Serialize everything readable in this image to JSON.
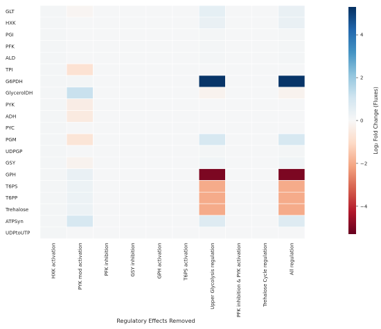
{
  "chart_data": {
    "type": "heatmap",
    "title": "",
    "xlabel": "Regulatory Effects Removed",
    "ylabel": "",
    "colorbar_label": "Log₂ Fold Change (Fluxes)",
    "colorbar_ticks": [
      4,
      2,
      0,
      -2,
      -4
    ],
    "colorbar_tick_labels": [
      "4",
      "2",
      "0",
      "−2",
      "−4"
    ],
    "vmin": -5.3,
    "vmax": 5.3,
    "colormap": "RdBu",
    "rows": [
      "GLT",
      "HXK",
      "PGI",
      "PFK",
      "ALD",
      "TPI",
      "G6PDH",
      "GlycerolDH",
      "PYK",
      "ADH",
      "PYC",
      "PGM",
      "UDPGP",
      "GSY",
      "GPH",
      "T6PS",
      "T6PP",
      "Trehalose",
      "ATPSyn",
      "UDPtoUTP"
    ],
    "columns": [
      "HXK activation",
      "PYK mod activation",
      "PFK inhibition",
      "GSY inhibition",
      "GPH activation",
      "T6PS activation",
      "Upper Glycolysis regulation",
      "PFK inhibition & PYK activation",
      "Trehalose Cycle regulation",
      "All regulation"
    ],
    "values": [
      [
        0.1,
        -0.1,
        0.05,
        0.05,
        0.05,
        0.05,
        0.5,
        0.05,
        0.05,
        0.4
      ],
      [
        0.1,
        0.05,
        0.05,
        0.05,
        0.05,
        0.05,
        0.4,
        0.05,
        0.05,
        0.4
      ],
      [
        0.1,
        0.05,
        0.05,
        0.05,
        0.05,
        0.05,
        0.1,
        0.05,
        0.05,
        0.1
      ],
      [
        0.1,
        0.05,
        0.05,
        0.05,
        0.05,
        0.05,
        0.1,
        0.05,
        0.05,
        0.1
      ],
      [
        0.1,
        0.05,
        0.05,
        0.05,
        0.05,
        0.05,
        0.1,
        0.05,
        0.05,
        0.1
      ],
      [
        0.1,
        -0.8,
        0.05,
        0.05,
        0.05,
        0.05,
        0.05,
        0.05,
        0.05,
        0.05
      ],
      [
        0.1,
        0.1,
        0.05,
        0.05,
        0.05,
        0.05,
        5.2,
        0.05,
        0.05,
        5.2
      ],
      [
        0.1,
        1.2,
        0.05,
        0.05,
        0.05,
        0.05,
        -0.2,
        0.05,
        0.05,
        -0.2
      ],
      [
        0.1,
        -0.4,
        0.05,
        0.05,
        0.05,
        0.05,
        0.05,
        0.05,
        0.05,
        0.05
      ],
      [
        0.1,
        -0.5,
        0.05,
        0.05,
        0.05,
        0.05,
        0.05,
        0.05,
        0.05,
        0.05
      ],
      [
        0.1,
        0.05,
        0.05,
        0.05,
        0.05,
        0.05,
        0.05,
        0.05,
        0.05,
        0.05
      ],
      [
        0.1,
        -0.7,
        0.05,
        0.05,
        0.05,
        0.05,
        0.9,
        0.05,
        0.05,
        0.9
      ],
      [
        0.1,
        0.05,
        0.05,
        0.05,
        0.05,
        0.05,
        0.1,
        0.05,
        0.05,
        0.1
      ],
      [
        0.1,
        -0.2,
        0.05,
        0.05,
        0.05,
        0.05,
        0.2,
        0.05,
        0.05,
        0.2
      ],
      [
        0.1,
        0.4,
        0.05,
        0.05,
        0.05,
        0.05,
        -5.0,
        0.05,
        0.05,
        -5.0
      ],
      [
        0.1,
        0.3,
        0.05,
        0.05,
        0.05,
        0.05,
        -2.0,
        0.05,
        0.05,
        -2.0
      ],
      [
        0.1,
        0.3,
        0.05,
        0.05,
        0.05,
        0.05,
        -2.0,
        0.05,
        0.05,
        -2.0
      ],
      [
        0.1,
        0.3,
        0.05,
        0.05,
        0.05,
        0.05,
        -2.0,
        0.05,
        0.05,
        -2.0
      ],
      [
        0.1,
        0.9,
        0.05,
        0.05,
        0.05,
        0.05,
        0.7,
        0.05,
        0.05,
        0.7
      ],
      [
        0.1,
        0.05,
        0.05,
        0.05,
        0.05,
        0.05,
        0.05,
        0.05,
        0.05,
        0.05
      ]
    ],
    "grid": false,
    "legend": "colorbar-right"
  }
}
